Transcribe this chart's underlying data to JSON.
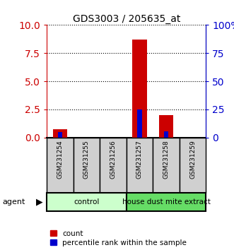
{
  "title": "GDS3003 / 205635_at",
  "samples": [
    "GSM231254",
    "GSM231255",
    "GSM231256",
    "GSM231257",
    "GSM231258",
    "GSM231259"
  ],
  "count_values": [
    0.72,
    0.0,
    0.0,
    8.7,
    2.0,
    0.0
  ],
  "percentile_values": [
    5.0,
    0.0,
    0.0,
    25.0,
    5.5,
    0.0
  ],
  "left_ylim": [
    0,
    10
  ],
  "right_ylim": [
    0,
    100
  ],
  "left_yticks": [
    0,
    2.5,
    5,
    7.5,
    10
  ],
  "right_yticks": [
    0,
    25,
    50,
    75,
    100
  ],
  "right_yticklabels": [
    "0",
    "25",
    "50",
    "75",
    "100%"
  ],
  "bar_color_count": "#cc0000",
  "bar_color_percentile": "#0000cc",
  "group_labels": [
    "control",
    "house dust mite extract"
  ],
  "group_ranges": [
    [
      0,
      3
    ],
    [
      3,
      6
    ]
  ],
  "group_colors_light": [
    "#ccffcc",
    "#66dd66"
  ],
  "label_agent": "agent",
  "legend_count": "count",
  "legend_percentile": "percentile rank within the sample",
  "count_bar_width": 0.55,
  "pct_bar_width": 0.18,
  "left_axis_color": "#cc0000",
  "right_axis_color": "#0000cc",
  "sample_box_color": "#d0d0d0",
  "title_fontsize": 10
}
